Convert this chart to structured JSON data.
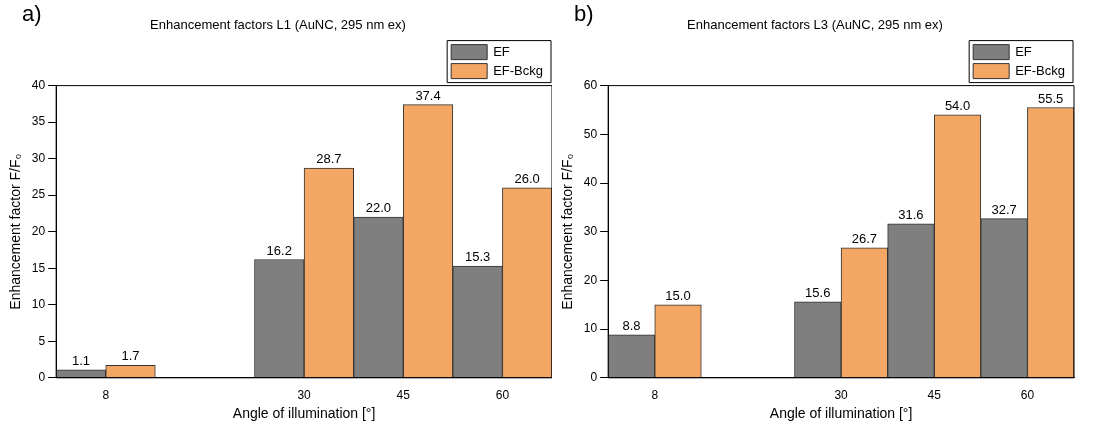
{
  "chart_data": [
    {
      "type": "bar",
      "title": "Enhancement factors L1 (AuNC, 295 nm ex)",
      "xlabel": "Angle of illumination [°]",
      "ylabel": "Enhancement factor F/F₀",
      "annotations": [
        "a)"
      ],
      "categories": [
        "8",
        null,
        "30",
        "45",
        "60"
      ],
      "series": [
        {
          "name": "EF",
          "color": "#7f7f7f",
          "values": [
            1.1,
            null,
            16.2,
            22.0,
            15.3
          ]
        },
        {
          "name": "EF-Bckg",
          "color": "#f4a765",
          "values": [
            1.7,
            null,
            28.7,
            37.4,
            26.0
          ]
        }
      ],
      "value_labels": [
        [
          "1.1",
          null,
          "16.2",
          "22.0",
          "15.3"
        ],
        [
          "1.7",
          null,
          "28.7",
          "37.4",
          "26.0"
        ]
      ],
      "ylim": [
        0,
        40
      ],
      "yticks": [
        0,
        5,
        10,
        15,
        20,
        25,
        30,
        35,
        40
      ],
      "grid": false,
      "legend": "top right"
    },
    {
      "type": "bar",
      "title": "Enhancement factors L3 (AuNC, 295 nm ex)",
      "xlabel": "Angle of illumination [°]",
      "ylabel": "Enhancement factor F/F₀",
      "annotations": [
        "b)"
      ],
      "categories": [
        "8",
        null,
        "30",
        "45",
        "60"
      ],
      "series": [
        {
          "name": "EF",
          "color": "#7f7f7f",
          "values": [
            8.8,
            null,
            15.6,
            31.6,
            32.7
          ]
        },
        {
          "name": "EF-Bckg",
          "color": "#f4a765",
          "values": [
            15.0,
            null,
            26.7,
            54.0,
            55.5
          ]
        }
      ],
      "value_labels": [
        [
          "8.8",
          null,
          "15.6",
          "31.6",
          "32.7"
        ],
        [
          "15.0",
          null,
          "26.7",
          "54.0",
          "55.5"
        ]
      ],
      "ylim": [
        0,
        60
      ],
      "yticks": [
        0,
        10,
        20,
        30,
        40,
        50,
        60
      ],
      "grid": false,
      "legend": "top right"
    }
  ]
}
